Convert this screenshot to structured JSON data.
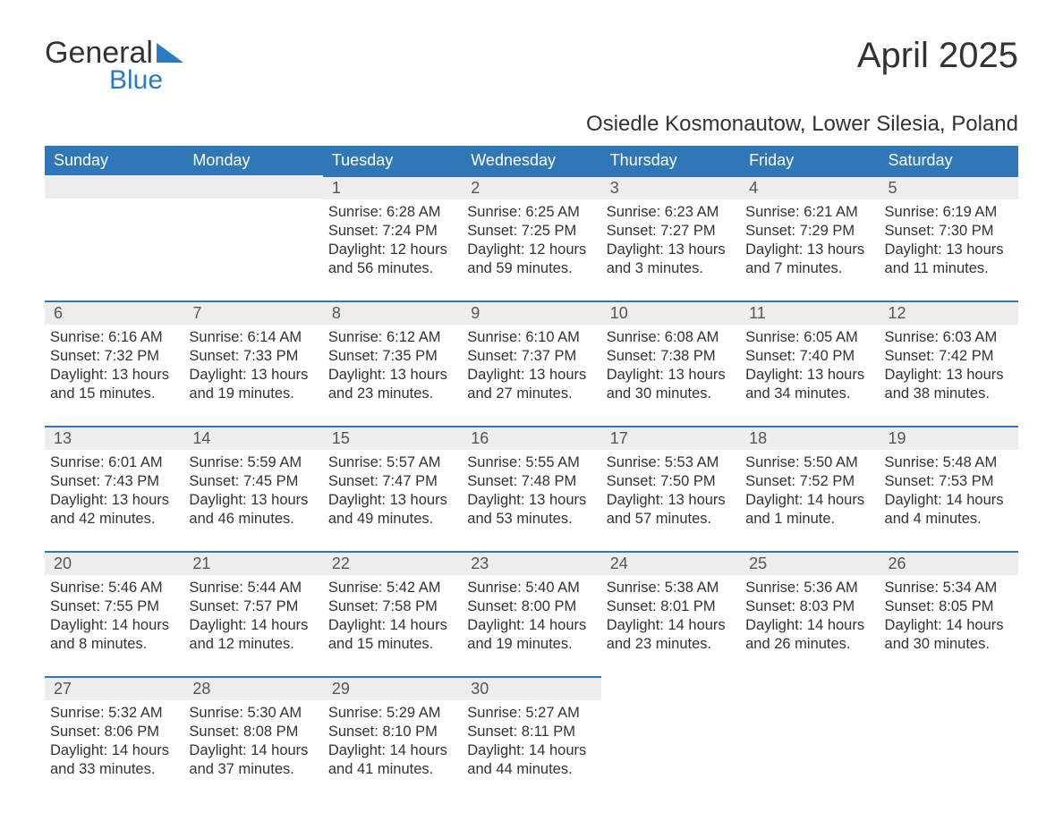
{
  "logo": {
    "general": "General",
    "blue": "Blue"
  },
  "title": "April 2025",
  "subtitle": "Osiedle Kosmonautow, Lower Silesia, Poland",
  "colors": {
    "header_bg": "#3077b7",
    "header_text": "#ffffff",
    "daynum_bg": "#ededed",
    "border_top": "#3077b7",
    "text": "#333333",
    "logo_blue": "#2a7bbf"
  },
  "columns": [
    "Sunday",
    "Monday",
    "Tuesday",
    "Wednesday",
    "Thursday",
    "Friday",
    "Saturday"
  ],
  "weeks": [
    [
      null,
      null,
      {
        "n": "1",
        "sr": "6:28 AM",
        "ss": "7:24 PM",
        "dl": "12 hours and 56 minutes."
      },
      {
        "n": "2",
        "sr": "6:25 AM",
        "ss": "7:25 PM",
        "dl": "12 hours and 59 minutes."
      },
      {
        "n": "3",
        "sr": "6:23 AM",
        "ss": "7:27 PM",
        "dl": "13 hours and 3 minutes."
      },
      {
        "n": "4",
        "sr": "6:21 AM",
        "ss": "7:29 PM",
        "dl": "13 hours and 7 minutes."
      },
      {
        "n": "5",
        "sr": "6:19 AM",
        "ss": "7:30 PM",
        "dl": "13 hours and 11 minutes."
      }
    ],
    [
      {
        "n": "6",
        "sr": "6:16 AM",
        "ss": "7:32 PM",
        "dl": "13 hours and 15 minutes."
      },
      {
        "n": "7",
        "sr": "6:14 AM",
        "ss": "7:33 PM",
        "dl": "13 hours and 19 minutes."
      },
      {
        "n": "8",
        "sr": "6:12 AM",
        "ss": "7:35 PM",
        "dl": "13 hours and 23 minutes."
      },
      {
        "n": "9",
        "sr": "6:10 AM",
        "ss": "7:37 PM",
        "dl": "13 hours and 27 minutes."
      },
      {
        "n": "10",
        "sr": "6:08 AM",
        "ss": "7:38 PM",
        "dl": "13 hours and 30 minutes."
      },
      {
        "n": "11",
        "sr": "6:05 AM",
        "ss": "7:40 PM",
        "dl": "13 hours and 34 minutes."
      },
      {
        "n": "12",
        "sr": "6:03 AM",
        "ss": "7:42 PM",
        "dl": "13 hours and 38 minutes."
      }
    ],
    [
      {
        "n": "13",
        "sr": "6:01 AM",
        "ss": "7:43 PM",
        "dl": "13 hours and 42 minutes."
      },
      {
        "n": "14",
        "sr": "5:59 AM",
        "ss": "7:45 PM",
        "dl": "13 hours and 46 minutes."
      },
      {
        "n": "15",
        "sr": "5:57 AM",
        "ss": "7:47 PM",
        "dl": "13 hours and 49 minutes."
      },
      {
        "n": "16",
        "sr": "5:55 AM",
        "ss": "7:48 PM",
        "dl": "13 hours and 53 minutes."
      },
      {
        "n": "17",
        "sr": "5:53 AM",
        "ss": "7:50 PM",
        "dl": "13 hours and 57 minutes."
      },
      {
        "n": "18",
        "sr": "5:50 AM",
        "ss": "7:52 PM",
        "dl": "14 hours and 1 minute."
      },
      {
        "n": "19",
        "sr": "5:48 AM",
        "ss": "7:53 PM",
        "dl": "14 hours and 4 minutes."
      }
    ],
    [
      {
        "n": "20",
        "sr": "5:46 AM",
        "ss": "7:55 PM",
        "dl": "14 hours and 8 minutes."
      },
      {
        "n": "21",
        "sr": "5:44 AM",
        "ss": "7:57 PM",
        "dl": "14 hours and 12 minutes."
      },
      {
        "n": "22",
        "sr": "5:42 AM",
        "ss": "7:58 PM",
        "dl": "14 hours and 15 minutes."
      },
      {
        "n": "23",
        "sr": "5:40 AM",
        "ss": "8:00 PM",
        "dl": "14 hours and 19 minutes."
      },
      {
        "n": "24",
        "sr": "5:38 AM",
        "ss": "8:01 PM",
        "dl": "14 hours and 23 minutes."
      },
      {
        "n": "25",
        "sr": "5:36 AM",
        "ss": "8:03 PM",
        "dl": "14 hours and 26 minutes."
      },
      {
        "n": "26",
        "sr": "5:34 AM",
        "ss": "8:05 PM",
        "dl": "14 hours and 30 minutes."
      }
    ],
    [
      {
        "n": "27",
        "sr": "5:32 AM",
        "ss": "8:06 PM",
        "dl": "14 hours and 33 minutes."
      },
      {
        "n": "28",
        "sr": "5:30 AM",
        "ss": "8:08 PM",
        "dl": "14 hours and 37 minutes."
      },
      {
        "n": "29",
        "sr": "5:29 AM",
        "ss": "8:10 PM",
        "dl": "14 hours and 41 minutes."
      },
      {
        "n": "30",
        "sr": "5:27 AM",
        "ss": "8:11 PM",
        "dl": "14 hours and 44 minutes."
      },
      null,
      null,
      null
    ]
  ],
  "labels": {
    "sunrise": "Sunrise: ",
    "sunset": "Sunset: ",
    "daylight": "Daylight: "
  }
}
